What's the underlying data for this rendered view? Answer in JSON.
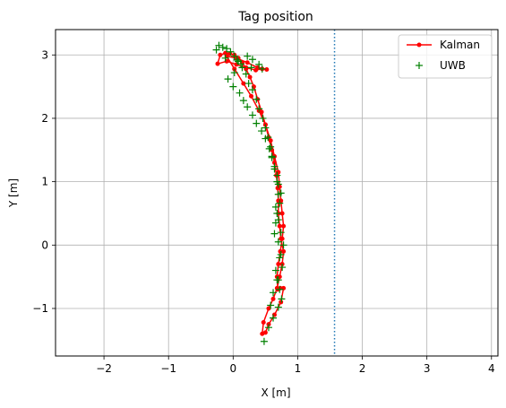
{
  "chart_data": {
    "type": "line",
    "title": "Tag position",
    "xlabel": "X [m]",
    "ylabel": "Y [m]",
    "xlim": [
      -2.75,
      4.1
    ],
    "ylim": [
      -1.75,
      3.4
    ],
    "xticks": [
      -2,
      -1,
      0,
      1,
      2,
      3,
      4
    ],
    "yticks": [
      -1,
      0,
      1,
      2,
      3
    ],
    "xtick_labels": [
      "−2",
      "−1",
      "0",
      "1",
      "2",
      "3",
      "4"
    ],
    "ytick_labels": [
      "−1",
      "0",
      "1",
      "2",
      "3"
    ],
    "grid": true,
    "legend_position": "top-right",
    "reference_line": {
      "orientation": "vertical",
      "x": 1.57,
      "style": "dotted",
      "color": "#1f77b4"
    },
    "series": [
      {
        "name": "Kalman",
        "kind": "line-with-markers",
        "color": "#ff0000",
        "x": [
          0.45,
          0.47,
          0.55,
          0.62,
          0.68,
          0.72,
          0.76,
          0.78,
          0.74,
          0.72,
          0.7,
          0.7,
          0.69,
          0.67,
          0.64,
          0.6,
          0.55,
          0.5,
          0.44,
          0.38,
          0.32,
          0.26,
          0.2,
          0.14,
          0.08,
          0.02,
          -0.05,
          -0.12,
          -0.2,
          -0.24,
          -0.1,
          0.05,
          0.2,
          0.35,
          0.45,
          0.52,
          0.38,
          0.22,
          0.05,
          -0.1,
          0.02,
          0.16,
          0.28,
          0.4,
          0.5,
          0.58,
          0.64,
          0.7,
          0.72,
          0.74,
          0.76,
          0.78,
          0.76,
          0.73,
          0.7,
          0.68,
          0.69,
          0.73,
          0.78,
          0.74,
          0.64,
          0.55,
          0.5
        ],
        "y": [
          -1.4,
          -1.22,
          -1.0,
          -0.85,
          -0.68,
          -0.5,
          -0.3,
          -0.1,
          0.1,
          0.3,
          0.5,
          0.7,
          0.9,
          1.1,
          1.3,
          1.5,
          1.7,
          1.9,
          2.1,
          2.3,
          2.5,
          2.65,
          2.78,
          2.88,
          2.95,
          3.0,
          3.02,
          3.03,
          3.0,
          2.86,
          2.9,
          2.85,
          2.8,
          2.76,
          2.78,
          2.77,
          2.8,
          2.88,
          2.95,
          2.98,
          2.78,
          2.55,
          2.35,
          2.12,
          1.9,
          1.65,
          1.4,
          1.15,
          0.92,
          0.7,
          0.5,
          0.3,
          0.1,
          -0.1,
          -0.3,
          -0.5,
          -0.7,
          -0.68,
          -0.68,
          -0.9,
          -1.1,
          -1.25,
          -1.38
        ]
      },
      {
        "name": "UWB",
        "kind": "markers",
        "color": "#008000",
        "x": [
          0.48,
          0.55,
          0.62,
          0.7,
          0.75,
          0.72,
          0.68,
          0.66,
          0.72,
          0.78,
          0.74,
          0.7,
          0.66,
          0.7,
          0.68,
          0.64,
          0.6,
          0.58,
          0.54,
          0.5,
          0.46,
          0.4,
          0.36,
          0.3,
          0.24,
          0.2,
          0.14,
          0.08,
          0.02,
          -0.04,
          -0.1,
          -0.16,
          -0.22,
          -0.26,
          -0.12,
          0.06,
          0.22,
          0.3,
          0.4,
          0.45,
          0.28,
          0.12,
          0.02,
          -0.08,
          0.0,
          0.1,
          0.16,
          0.22,
          0.3,
          0.36,
          0.44,
          0.5,
          0.56,
          0.6,
          0.64,
          0.68,
          0.7,
          0.74,
          0.72,
          0.68,
          0.66,
          0.64,
          0.7,
          0.74,
          0.76,
          0.7,
          0.62,
          0.58
        ],
        "y": [
          -1.52,
          -1.3,
          -1.15,
          -0.98,
          -0.85,
          -0.7,
          -0.55,
          -0.4,
          -0.2,
          0.0,
          0.2,
          0.4,
          0.6,
          0.8,
          1.0,
          1.2,
          1.4,
          1.55,
          1.7,
          1.85,
          2.0,
          2.15,
          2.3,
          2.45,
          2.55,
          2.7,
          2.8,
          2.9,
          2.98,
          3.05,
          3.1,
          3.12,
          3.15,
          3.08,
          2.95,
          2.92,
          2.98,
          2.93,
          2.85,
          2.78,
          2.8,
          2.86,
          2.72,
          2.62,
          2.5,
          2.4,
          2.28,
          2.18,
          2.05,
          1.92,
          1.8,
          1.68,
          1.52,
          1.38,
          1.24,
          1.1,
          0.96,
          0.82,
          0.66,
          0.5,
          0.35,
          0.18,
          0.05,
          -0.15,
          -0.35,
          -0.55,
          -0.75,
          -0.95
        ]
      }
    ]
  }
}
